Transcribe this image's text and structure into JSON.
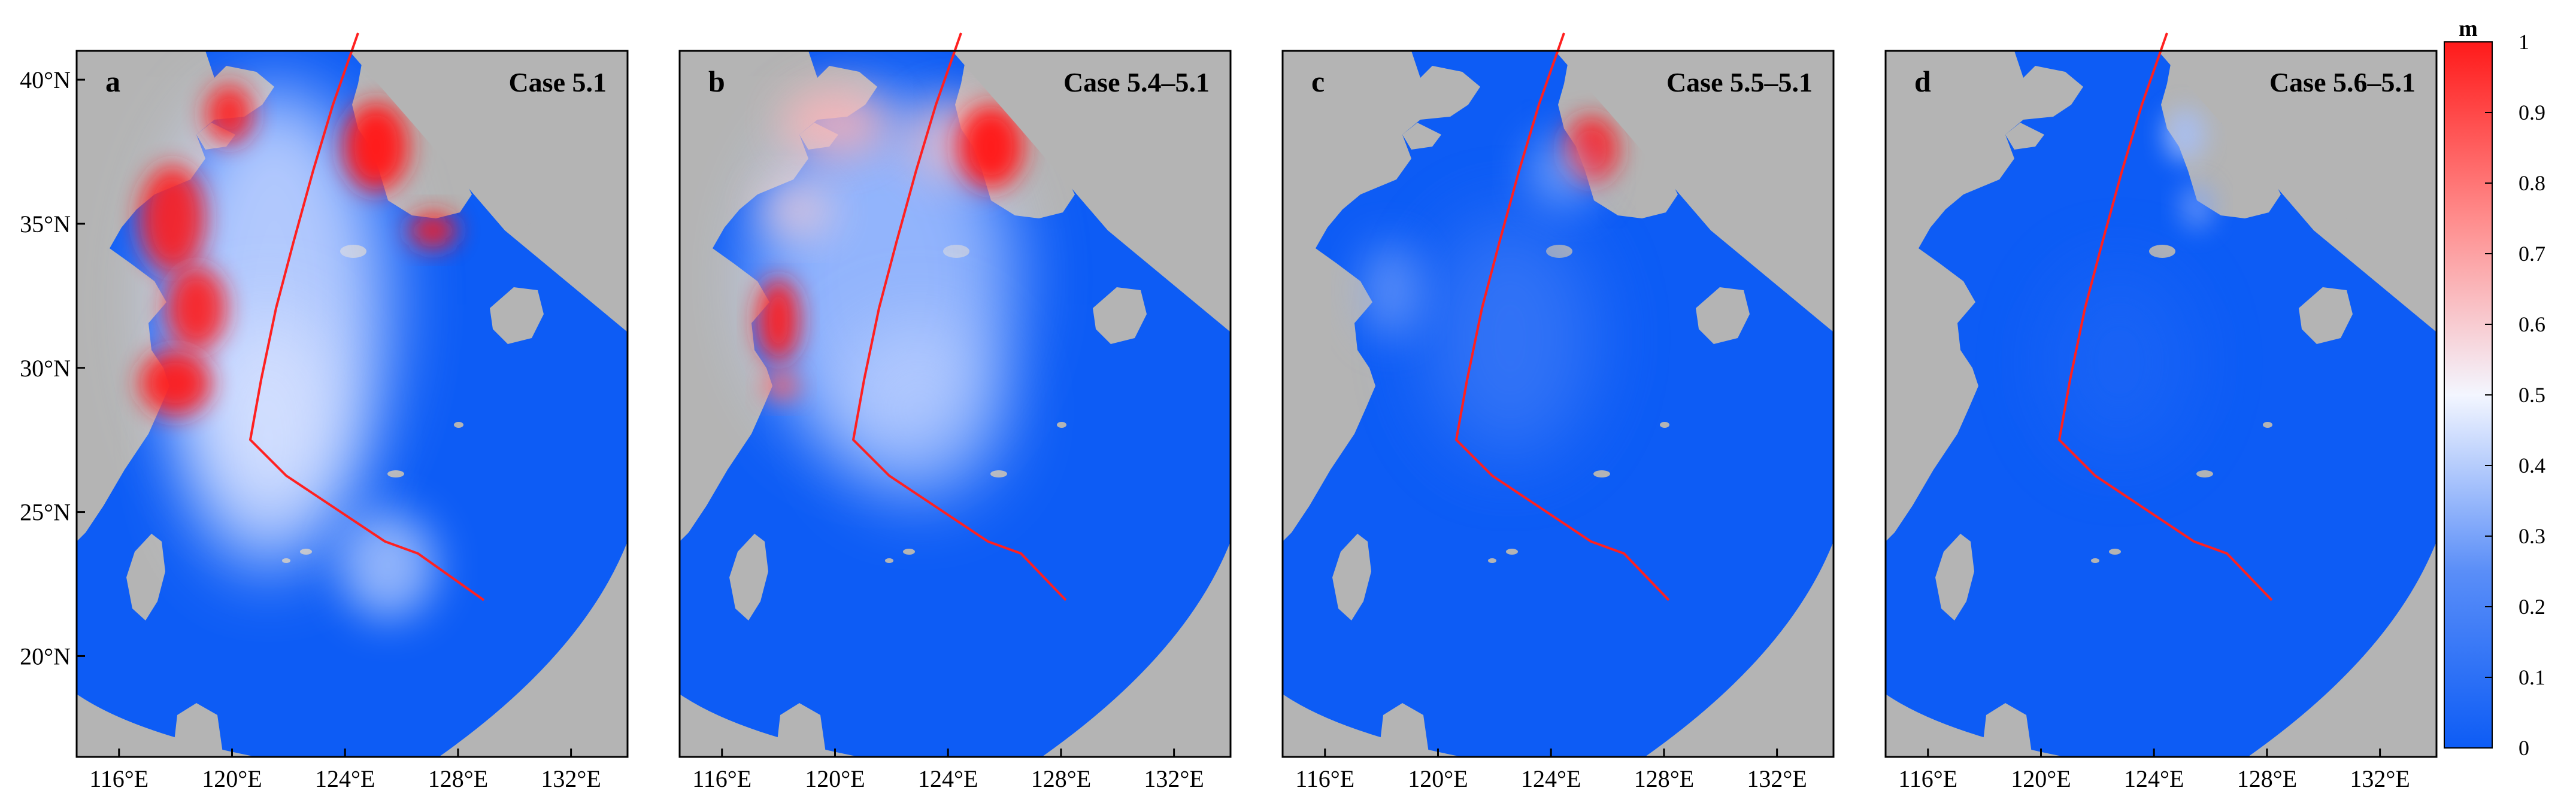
{
  "panels": [
    {
      "letter": "a",
      "case": "Case 5.1",
      "style": "strong"
    },
    {
      "letter": "b",
      "case": "Case 5.4–5.1",
      "style": "medium"
    },
    {
      "letter": "c",
      "case": "Case 5.5–5.1",
      "style": "weak"
    },
    {
      "letter": "d",
      "case": "Case 5.6–5.1",
      "style": "minimal"
    }
  ],
  "axes": {
    "lon_ticks": [
      "116°E",
      "120°E",
      "124°E",
      "128°E",
      "132°E"
    ],
    "lat_ticks": [
      "40°N",
      "35°N",
      "30°N",
      "25°N",
      "20°N"
    ],
    "lon_range": [
      114.5,
      134.0
    ],
    "lat_range": [
      16.5,
      41.0
    ]
  },
  "colorbar": {
    "unit": "m",
    "ticks": [
      "1",
      "0.9",
      "0.8",
      "0.7",
      "0.6",
      "0.5",
      "0.4",
      "0.3",
      "0.2",
      "0.1",
      "0"
    ],
    "range": [
      0,
      1
    ],
    "colors": {
      "high": "#ff1a1a",
      "mid": "#f3f6ff",
      "low": "#0d5cf5"
    }
  },
  "colors": {
    "land": "#b4b4b4",
    "sea_low": "#0d5cf5",
    "anomaly_high": "#ff1a1a",
    "track": "#ff2020"
  }
}
